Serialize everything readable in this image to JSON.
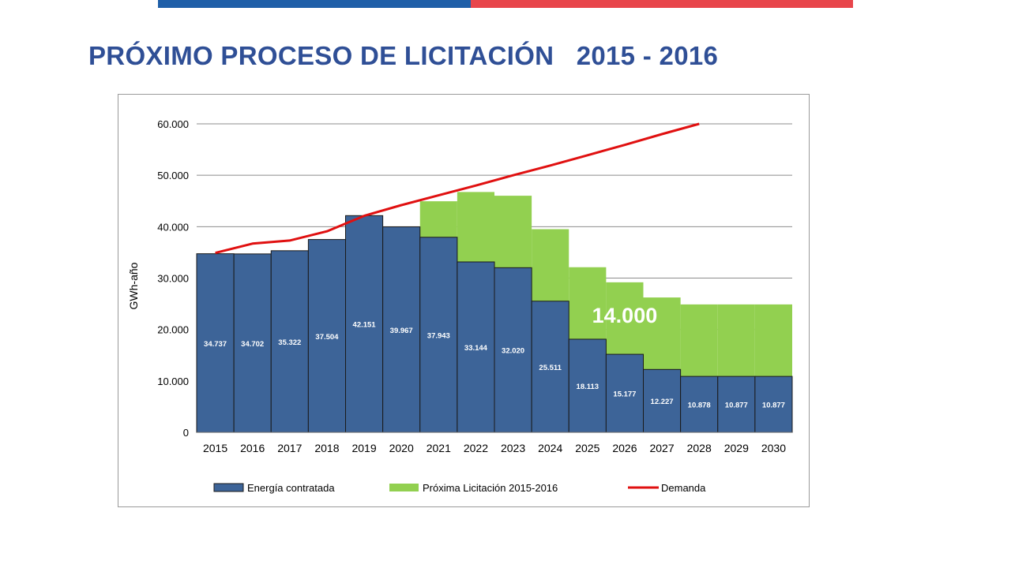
{
  "slide": {
    "title": "PRÓXIMO PROCESO DE LICITACIÓN   2015 - 2016"
  },
  "colors": {
    "top_bar_left": "#1f5fa8",
    "top_bar_right": "#e8454b",
    "title": "#2f4f96",
    "contracted": "#3d6498",
    "tender": "#92d050",
    "demand": "#e01010",
    "annotation": "#ffffff"
  },
  "chart_data": {
    "type": "bar",
    "title": "",
    "xlabel": "",
    "ylabel": "GWh-año",
    "ylim": [
      0,
      60000
    ],
    "yticks": [
      0,
      10000,
      20000,
      30000,
      40000,
      50000,
      60000
    ],
    "ytick_labels": [
      "0",
      "10.000",
      "20.000",
      "30.000",
      "40.000",
      "50.000",
      "60.000"
    ],
    "grid": true,
    "stacked": true,
    "legend_position": "bottom",
    "categories": [
      "2015",
      "2016",
      "2017",
      "2018",
      "2019",
      "2020",
      "2021",
      "2022",
      "2023",
      "2024",
      "2025",
      "2026",
      "2027",
      "2028",
      "2029",
      "2030"
    ],
    "series": [
      {
        "name": "Energía contratada",
        "kind": "bar",
        "color": "#3d6498",
        "values": [
          34737,
          34702,
          35322,
          37504,
          42151,
          39967,
          37943,
          33144,
          32020,
          25511,
          18113,
          15177,
          12227,
          10878,
          10877,
          10877
        ],
        "data_labels": [
          "34.737",
          "34.702",
          "35.322",
          "37.504",
          "42.151",
          "39.967",
          "37.943",
          "33.144",
          "32.020",
          "25.511",
          "18.113",
          "15.177",
          "12.227",
          "10.878",
          "10.877",
          "10.877"
        ]
      },
      {
        "name": "Próxima Licitación 2015-2016",
        "kind": "bar",
        "color": "#92d050",
        "values": [
          0,
          0,
          0,
          0,
          0,
          0,
          7000,
          13600,
          14000,
          14000,
          14000,
          14000,
          14000,
          14000,
          14000,
          14000
        ]
      },
      {
        "name": "Demanda",
        "kind": "line",
        "color": "#e01010",
        "values": [
          34900,
          36700,
          37300,
          39100,
          42100,
          44200,
          46100,
          48000,
          50000,
          51900,
          53900,
          55900,
          58000,
          60200,
          null,
          null
        ]
      }
    ],
    "annotations": [
      {
        "text": "14.000",
        "x": "2026",
        "y": 21300
      }
    ]
  }
}
